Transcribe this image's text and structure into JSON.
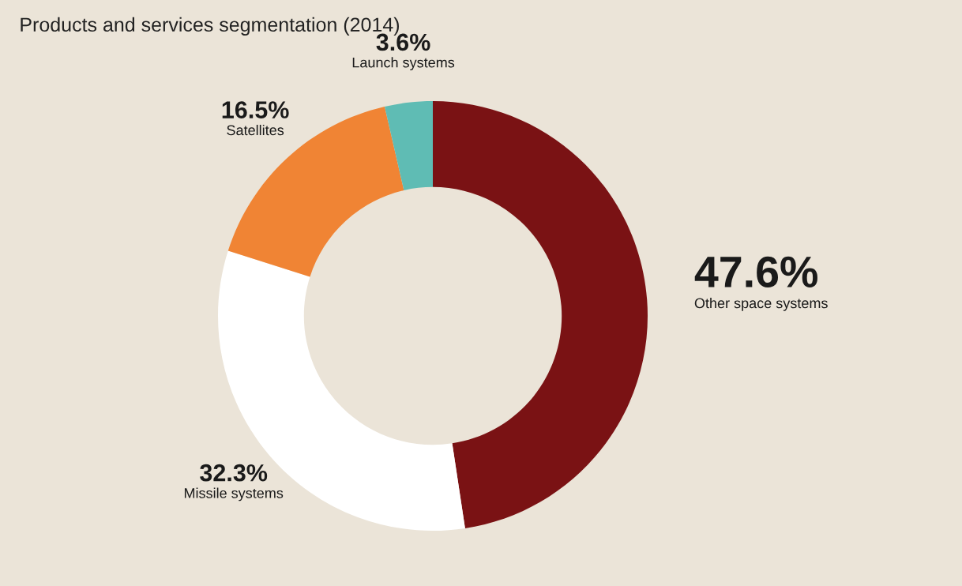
{
  "chart_data": {
    "type": "donut",
    "title": "Products and services segmentation (2014)",
    "categories": [
      "Other space systems",
      "Missile systems",
      "Satellites",
      "Launch systems"
    ],
    "values": [
      47.6,
      32.3,
      16.5,
      3.6
    ],
    "value_labels": [
      "47.6%",
      "32.3%",
      "16.5%",
      "3.6%"
    ],
    "colors": [
      "#7a1214",
      "#ffffff",
      "#f08434",
      "#5fbcb4"
    ]
  }
}
